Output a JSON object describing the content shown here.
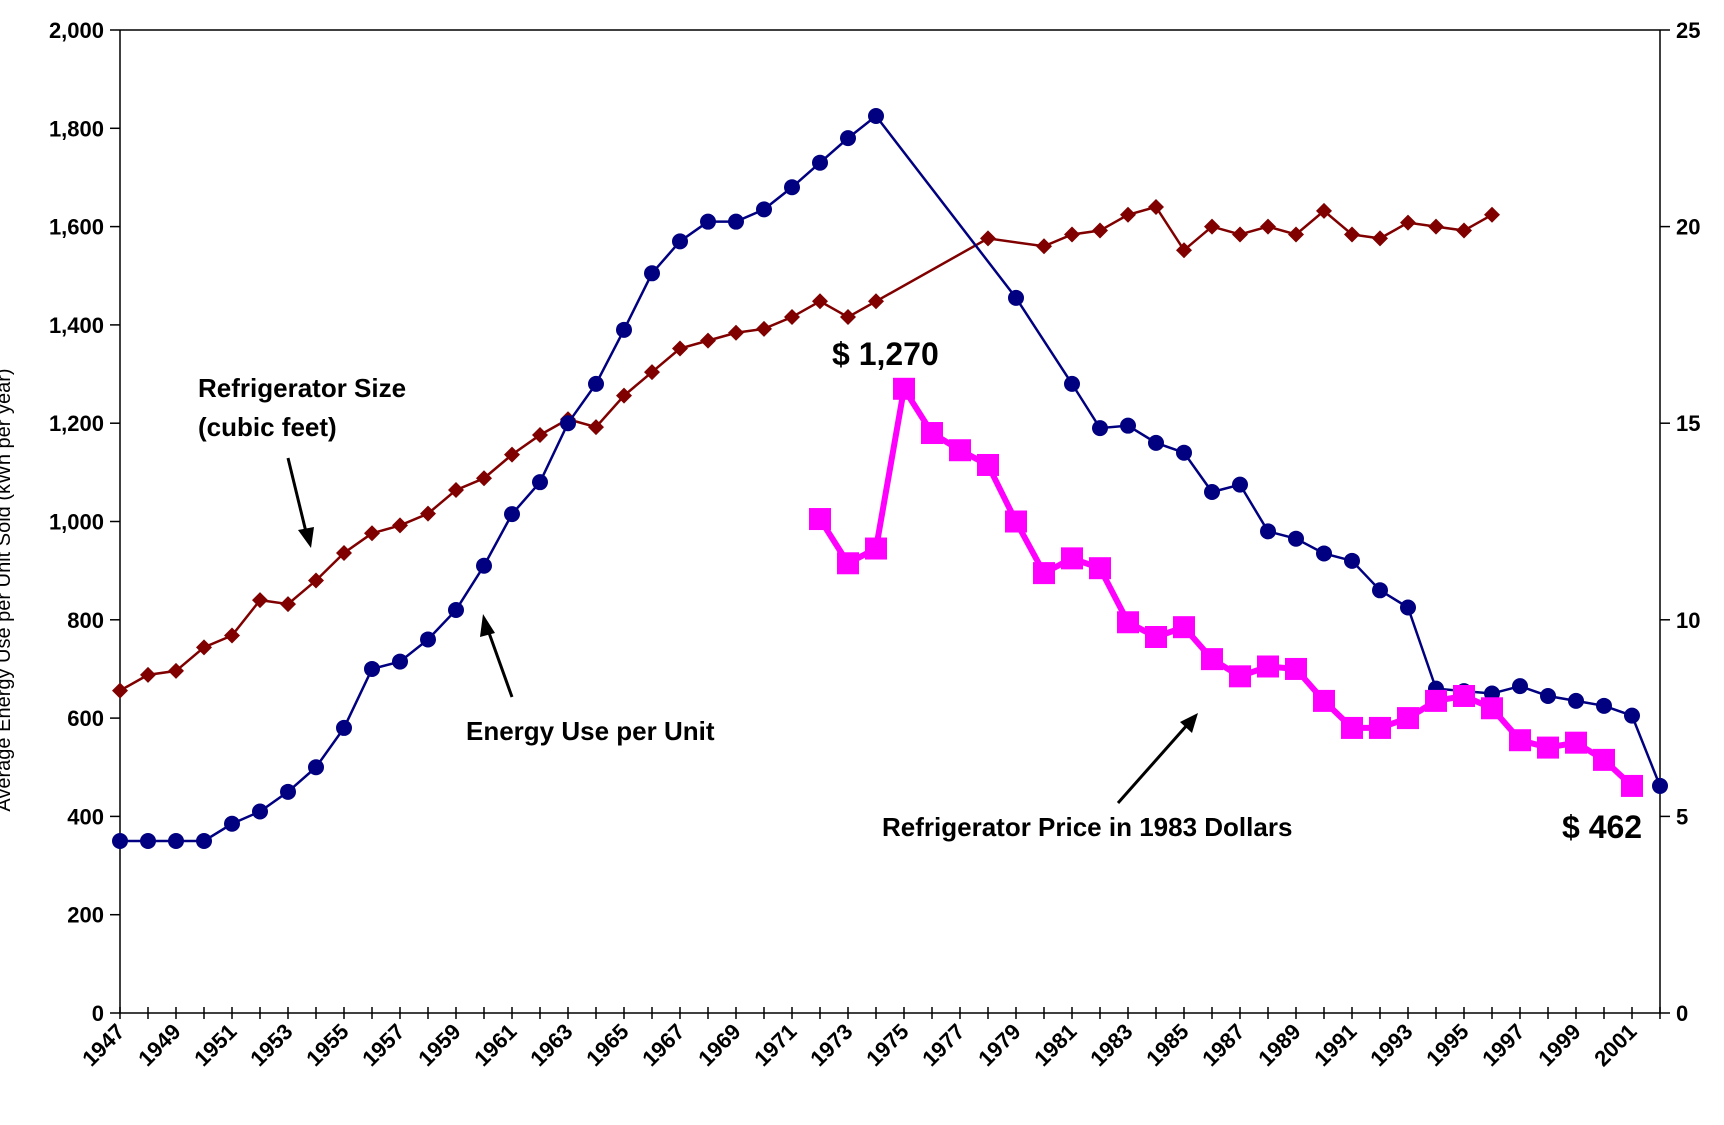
{
  "chart_data": {
    "type": "line",
    "title": "",
    "xlabel": "",
    "ylabel": "Average Energy Use per Unit Sold (kWh per year)",
    "y2label": "",
    "ylim": [
      0,
      2000
    ],
    "y2lim": [
      0,
      25
    ],
    "x": [
      1947,
      1948,
      1949,
      1950,
      1951,
      1952,
      1953,
      1954,
      1955,
      1956,
      1957,
      1958,
      1959,
      1960,
      1961,
      1962,
      1963,
      1964,
      1965,
      1966,
      1967,
      1968,
      1969,
      1970,
      1971,
      1972,
      1973,
      1974,
      1975,
      1976,
      1977,
      1978,
      1979,
      1980,
      1981,
      1982,
      1983,
      1984,
      1985,
      1986,
      1987,
      1988,
      1989,
      1990,
      1991,
      1992,
      1993,
      1994,
      1995,
      1996,
      1997,
      1998,
      1999,
      2000,
      2001,
      2002
    ],
    "x_tick_labels": [
      "1947",
      "1949",
      "1951",
      "1953",
      "1955",
      "1957",
      "1959",
      "1961",
      "1963",
      "1965",
      "1967",
      "1969",
      "1971",
      "1973",
      "1975",
      "1977",
      "1979",
      "1981",
      "1983",
      "1985",
      "1987",
      "1989",
      "1991",
      "1993",
      "1995",
      "1997",
      "1999",
      "2001"
    ],
    "y_tick_labels": [
      "0",
      "200",
      "400",
      "600",
      "800",
      "1,000",
      "1,200",
      "1,400",
      "1,600",
      "1,800",
      "2,000"
    ],
    "y2_tick_labels": [
      "0",
      "5",
      "10",
      "15",
      "20",
      "25"
    ],
    "grid": false,
    "series": [
      {
        "name": "Energy Use per Unit",
        "axis": "left",
        "color": "#000080",
        "marker": "circle",
        "points": [
          [
            1947,
            350
          ],
          [
            1948,
            350
          ],
          [
            1949,
            350
          ],
          [
            1950,
            350
          ],
          [
            1951,
            385
          ],
          [
            1952,
            410
          ],
          [
            1953,
            450
          ],
          [
            1954,
            500
          ],
          [
            1955,
            580
          ],
          [
            1956,
            700
          ],
          [
            1957,
            715
          ],
          [
            1958,
            760
          ],
          [
            1959,
            820
          ],
          [
            1960,
            910
          ],
          [
            1961,
            1015
          ],
          [
            1962,
            1080
          ],
          [
            1963,
            1200
          ],
          [
            1964,
            1280
          ],
          [
            1965,
            1390
          ],
          [
            1966,
            1505
          ],
          [
            1967,
            1570
          ],
          [
            1968,
            1610
          ],
          [
            1969,
            1610
          ],
          [
            1970,
            1635
          ],
          [
            1971,
            1680
          ],
          [
            1972,
            1730
          ],
          [
            1973,
            1780
          ],
          [
            1974,
            1825
          ],
          [
            1979,
            1455
          ],
          [
            1981,
            1280
          ],
          [
            1982,
            1190
          ],
          [
            1983,
            1195
          ],
          [
            1984,
            1160
          ],
          [
            1985,
            1140
          ],
          [
            1986,
            1060
          ],
          [
            1987,
            1075
          ],
          [
            1988,
            980
          ],
          [
            1989,
            965
          ],
          [
            1990,
            935
          ],
          [
            1991,
            920
          ],
          [
            1992,
            860
          ],
          [
            1993,
            825
          ],
          [
            1994,
            660
          ],
          [
            1995,
            655
          ],
          [
            1996,
            650
          ],
          [
            1997,
            665
          ],
          [
            1998,
            645
          ],
          [
            1999,
            635
          ],
          [
            2000,
            625
          ],
          [
            2001,
            605
          ],
          [
            2002,
            462
          ]
        ]
      },
      {
        "name": "Refrigerator Size (cubic feet)",
        "axis": "right",
        "color": "#800000",
        "marker": "diamond",
        "points": [
          [
            1947,
            8.2
          ],
          [
            1948,
            8.6
          ],
          [
            1949,
            8.7
          ],
          [
            1950,
            9.3
          ],
          [
            1951,
            9.6
          ],
          [
            1952,
            10.5
          ],
          [
            1953,
            10.4
          ],
          [
            1954,
            11.0
          ],
          [
            1955,
            11.7
          ],
          [
            1956,
            12.2
          ],
          [
            1957,
            12.4
          ],
          [
            1958,
            12.7
          ],
          [
            1959,
            13.3
          ],
          [
            1960,
            13.6
          ],
          [
            1961,
            14.2
          ],
          [
            1962,
            14.7
          ],
          [
            1963,
            15.1
          ],
          [
            1964,
            14.9
          ],
          [
            1965,
            15.7
          ],
          [
            1966,
            16.3
          ],
          [
            1967,
            16.9
          ],
          [
            1968,
            17.1
          ],
          [
            1969,
            17.3
          ],
          [
            1970,
            17.4
          ],
          [
            1971,
            17.7
          ],
          [
            1972,
            18.1
          ],
          [
            1973,
            17.7
          ],
          [
            1974,
            18.1
          ],
          [
            1978,
            19.7
          ],
          [
            1980,
            19.5
          ],
          [
            1981,
            19.8
          ],
          [
            1982,
            19.9
          ],
          [
            1983,
            20.3
          ],
          [
            1984,
            20.5
          ],
          [
            1985,
            19.4
          ],
          [
            1986,
            20.0
          ],
          [
            1987,
            19.8
          ],
          [
            1988,
            20.0
          ],
          [
            1989,
            19.8
          ],
          [
            1990,
            20.4
          ],
          [
            1991,
            19.8
          ],
          [
            1992,
            19.7
          ],
          [
            1993,
            20.1
          ],
          [
            1994,
            20.0
          ],
          [
            1995,
            19.9
          ],
          [
            1996,
            20.3
          ]
        ]
      },
      {
        "name": "Refrigerator Price in 1983 Dollars",
        "axis": "left",
        "color": "#ff00ff",
        "marker": "square",
        "points": [
          [
            1972,
            1005
          ],
          [
            1973,
            915
          ],
          [
            1974,
            945
          ],
          [
            1975,
            1270
          ],
          [
            1976,
            1180
          ],
          [
            1977,
            1145
          ],
          [
            1978,
            1115
          ],
          [
            1979,
            1000
          ],
          [
            1980,
            895
          ],
          [
            1981,
            925
          ],
          [
            1982,
            905
          ],
          [
            1983,
            795
          ],
          [
            1984,
            765
          ],
          [
            1985,
            785
          ],
          [
            1986,
            720
          ],
          [
            1987,
            685
          ],
          [
            1988,
            705
          ],
          [
            1989,
            700
          ],
          [
            1990,
            635
          ],
          [
            1991,
            580
          ],
          [
            1992,
            580
          ],
          [
            1993,
            600
          ],
          [
            1994,
            635
          ],
          [
            1995,
            645
          ],
          [
            1996,
            620
          ],
          [
            1997,
            555
          ],
          [
            1998,
            540
          ],
          [
            1999,
            550
          ],
          [
            2000,
            515
          ],
          [
            2001,
            462
          ]
        ]
      }
    ],
    "annotations": [
      {
        "text": "Refrigerator Size",
        "text2": "(cubic feet)"
      },
      {
        "text": "Energy Use per Unit"
      },
      {
        "text": "Refrigerator Price in 1983 Dollars"
      },
      {
        "text": "$ 1,270"
      },
      {
        "text": "$ 462"
      }
    ]
  }
}
